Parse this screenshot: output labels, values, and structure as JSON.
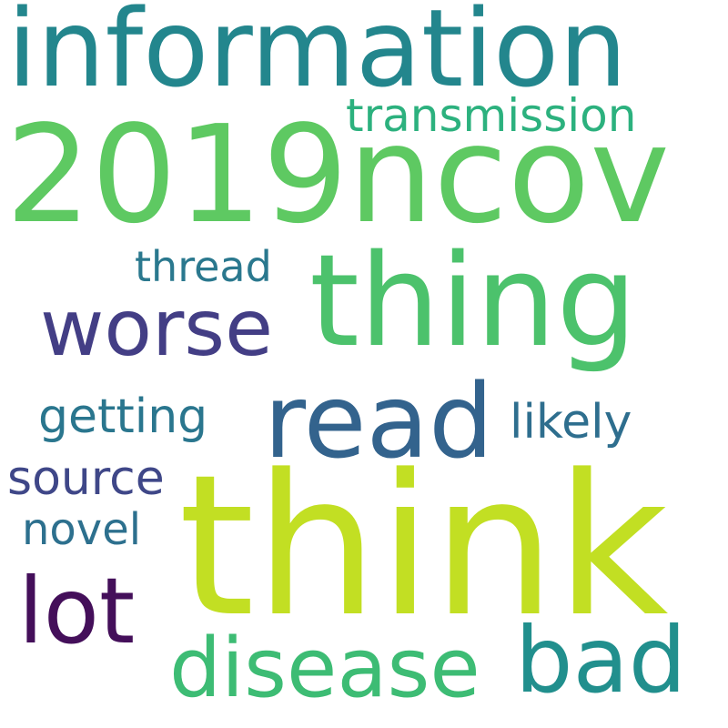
{
  "words": [
    {
      "text": "information",
      "color": "#23868d"
    },
    {
      "text": "2019ncov",
      "color": "#5ec962"
    },
    {
      "text": "transmission",
      "color": "#2cb17e"
    },
    {
      "text": "thread",
      "color": "#2a788e"
    },
    {
      "text": "thing",
      "color": "#4cc26c"
    },
    {
      "text": "worse",
      "color": "#433e85"
    },
    {
      "text": "read",
      "color": "#33638d"
    },
    {
      "text": "getting",
      "color": "#2a768e"
    },
    {
      "text": "likely",
      "color": "#2e6e8e"
    },
    {
      "text": "source",
      "color": "#3f4788"
    },
    {
      "text": "novel",
      "color": "#2d708e"
    },
    {
      "text": "think",
      "color": "#c2df23"
    },
    {
      "text": "lot",
      "color": "#440f5a"
    },
    {
      "text": "bad",
      "color": "#218f8d"
    },
    {
      "text": "disease",
      "color": "#3dbc74"
    }
  ]
}
